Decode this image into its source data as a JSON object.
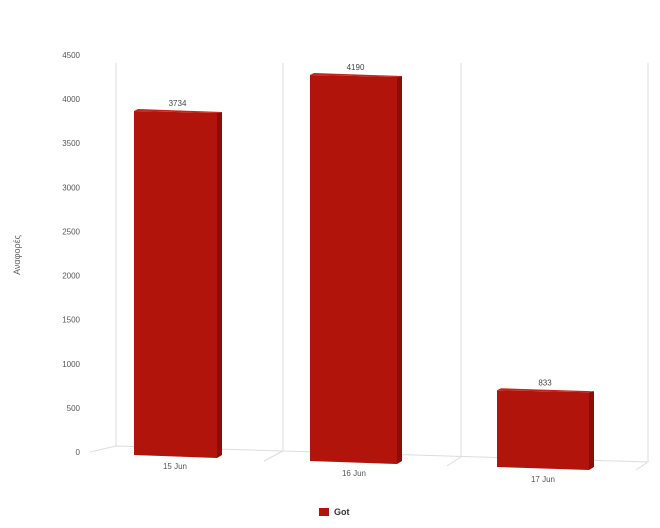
{
  "chart_data": {
    "type": "bar",
    "categories": [
      "15 Jun",
      "16 Jun",
      "17 Jun"
    ],
    "series": [
      {
        "name": "Got",
        "values": [
          3734,
          4190,
          833
        ],
        "color": "#b0140b"
      }
    ],
    "ylabel": "Αναφορές",
    "xlabel": "",
    "title": "",
    "ylim": [
      0,
      4500
    ],
    "yticks": [
      0,
      500,
      1000,
      1500,
      2000,
      2500,
      3000,
      3500,
      4000,
      4500
    ],
    "data_labels": [
      "3734",
      "4190",
      "833"
    ],
    "grid": true,
    "legend_position": "bottom-center",
    "style": "3d"
  }
}
